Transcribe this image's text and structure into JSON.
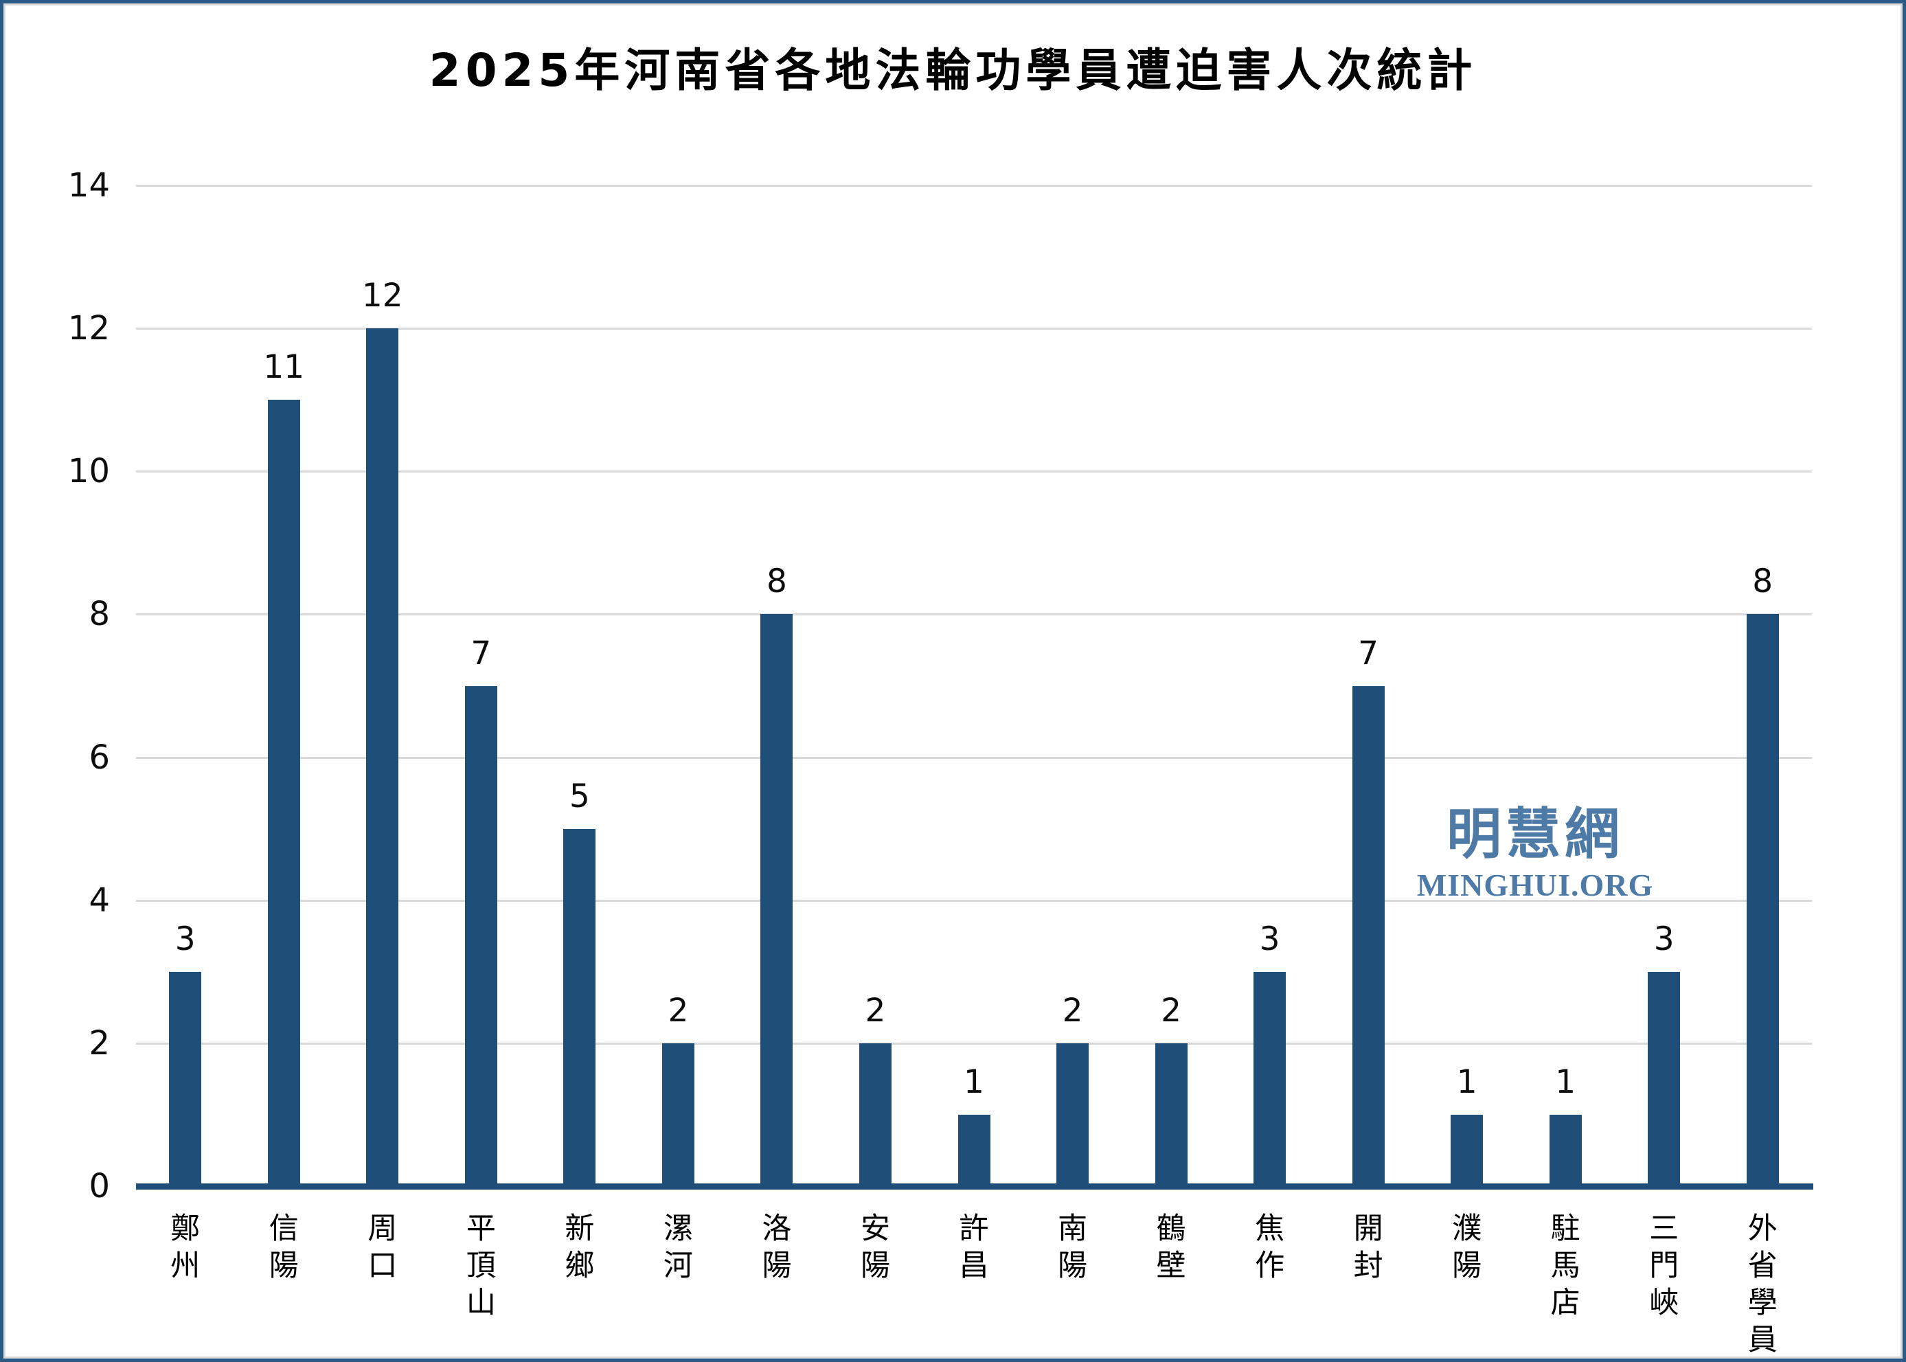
{
  "title": "2025年河南省各地法輪功學員遭迫害人次統計",
  "watermark": {
    "cjk": "明慧網",
    "latin": "MINGHUI.ORG",
    "color": "#4d7aa6"
  },
  "colors": {
    "bar": "#1F4E79",
    "axis_line": "#1F4E79",
    "gridline": "#d9d9d9",
    "border": "#2b5a87",
    "text": "#000000"
  },
  "chart_data": {
    "type": "bar",
    "title": "2025年河南省各地法輪功學員遭迫害人次統計",
    "categories": [
      "鄭州",
      "信陽",
      "周口",
      "平頂山",
      "新鄉",
      "漯河",
      "洛陽",
      "安陽",
      "許昌",
      "南陽",
      "鶴壁",
      "焦作",
      "開封",
      "濮陽",
      "駐馬店",
      "三門峽",
      "外省學員"
    ],
    "values": [
      3,
      11,
      12,
      7,
      5,
      2,
      8,
      2,
      1,
      2,
      2,
      3,
      7,
      1,
      1,
      3,
      8
    ],
    "xlabel": "",
    "ylabel": "",
    "ylim": [
      0,
      14
    ],
    "yticks": [
      0,
      2,
      4,
      6,
      8,
      10,
      12,
      14
    ],
    "grid": "horizontal",
    "legend": "none",
    "bar_labels_shown": true,
    "x_label_orientation": "vertical-stacked"
  }
}
